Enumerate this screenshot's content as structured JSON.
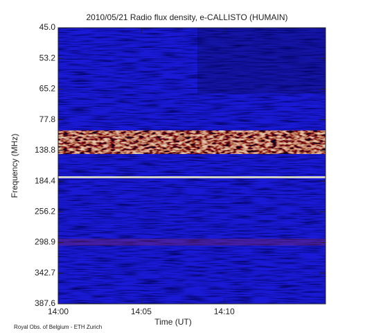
{
  "chart_data": {
    "type": "spectrogram",
    "title": "2010/05/21  Radio flux density, e-CALLISTO (HUMAIN)",
    "x_label": "Time (UT)",
    "y_label": "Frequency (MHz)",
    "xlim": [
      840,
      856.1
    ],
    "xticks": [
      {
        "value": 840,
        "label": "14:00"
      },
      {
        "value": 845,
        "label": "14:05"
      },
      {
        "value": 850,
        "label": "14:10"
      }
    ],
    "yticks": [
      {
        "value": 45.0,
        "label": "45.0"
      },
      {
        "value": 53.2,
        "label": "53.2"
      },
      {
        "value": 65.2,
        "label": "65.2"
      },
      {
        "value": 77.8,
        "label": "77.8"
      },
      {
        "value": 138.8,
        "label": "138.8"
      },
      {
        "value": 184.4,
        "label": "184.4"
      },
      {
        "value": 256.2,
        "label": "256.2"
      },
      {
        "value": 298.9,
        "label": "298.9"
      },
      {
        "value": 342.7,
        "label": "342.7"
      },
      {
        "value": 387.6,
        "label": "387.6"
      }
    ],
    "footer": "Royal Obs. of Belgium - ETH Zurich"
  }
}
